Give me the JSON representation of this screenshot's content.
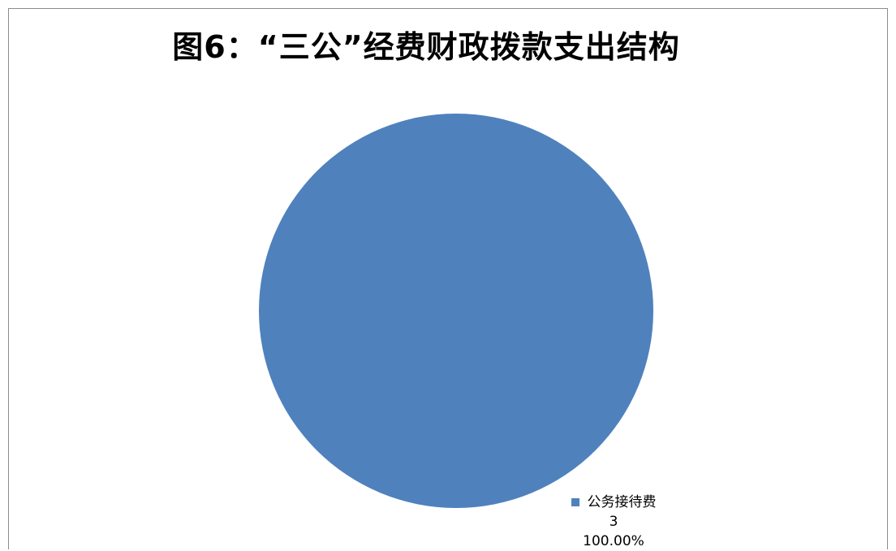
{
  "chart_data": {
    "type": "pie",
    "title": "图6：“三公”经费财政拨款支出结构",
    "slices": [
      {
        "label": "公务接待费",
        "value": 3,
        "percent": "100.00%",
        "color": "#4f81bd"
      }
    ]
  }
}
